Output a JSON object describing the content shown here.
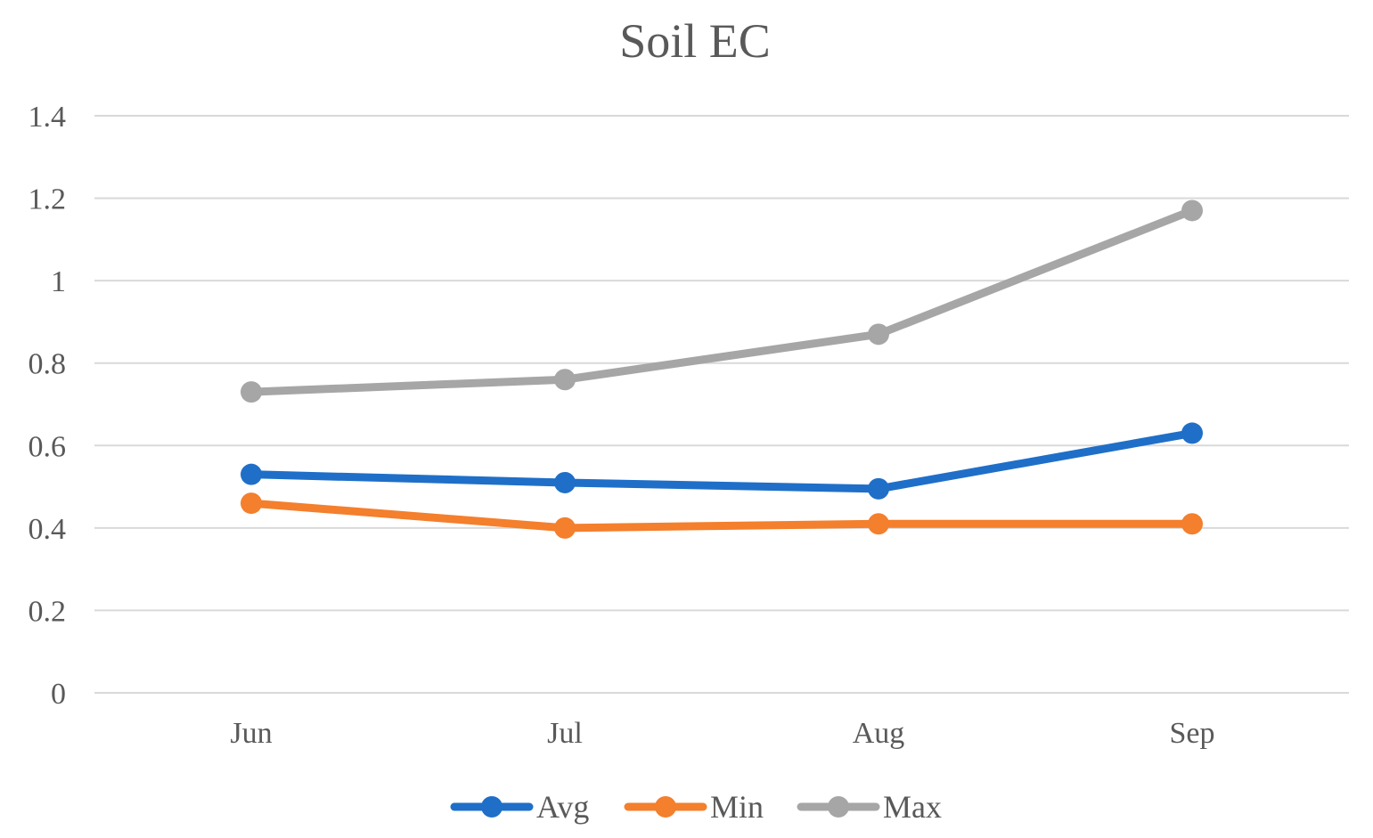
{
  "chart_data": {
    "type": "line",
    "title": "Soil EC",
    "xlabel": "",
    "ylabel": "",
    "categories": [
      "Jun",
      "Jul",
      "Aug",
      "Sep"
    ],
    "ylim": [
      0,
      1.4
    ],
    "yticks": [
      0,
      0.2,
      0.4,
      0.6,
      0.8,
      1,
      1.2,
      1.4
    ],
    "ytick_labels": [
      "0",
      "0.2",
      "0.4",
      "0.6",
      "0.8",
      "1",
      "1.2",
      "1.4"
    ],
    "grid": true,
    "legend_position": "bottom",
    "series": [
      {
        "name": "Avg",
        "color": "#1f6fc8",
        "values": [
          0.53,
          0.51,
          0.495,
          0.63
        ]
      },
      {
        "name": "Min",
        "color": "#f47f2c",
        "values": [
          0.46,
          0.4,
          0.41,
          0.41
        ]
      },
      {
        "name": "Max",
        "color": "#a6a6a6",
        "values": [
          0.73,
          0.76,
          0.87,
          1.17
        ]
      }
    ]
  }
}
